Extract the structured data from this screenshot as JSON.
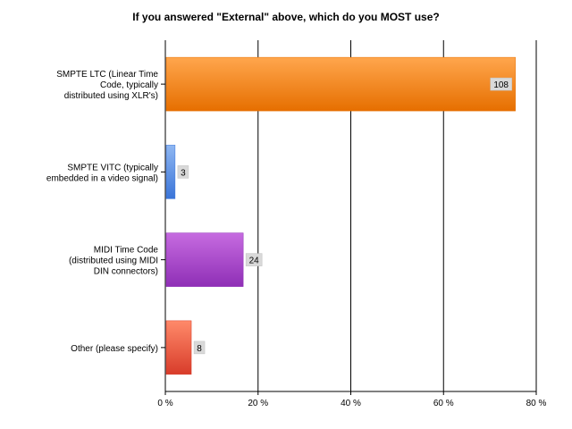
{
  "chart_data": {
    "type": "bar",
    "orientation": "horizontal",
    "title": "If you answered \"External\" above, which do you MOST use?",
    "categories": [
      [
        "SMPTE LTC (Linear Time",
        "Code, typically",
        "distributed using XLR's)"
      ],
      [
        "SMPTE VITC (typically",
        "embedded in a video signal)"
      ],
      [
        "MIDI Time Code",
        "(distributed using MIDI",
        "DIN connectors)"
      ],
      [
        "Other (please specify)"
      ]
    ],
    "values_percent": [
      75.5,
      2.1,
      16.8,
      5.6
    ],
    "data_labels": [
      "108",
      "3",
      "24",
      "8"
    ],
    "xlim": [
      0,
      80
    ],
    "x_ticks": [
      0,
      20,
      40,
      60,
      80
    ],
    "x_tick_labels": [
      "0 %",
      "20 %",
      "40 %",
      "60 %",
      "80 %"
    ],
    "grid": "vertical",
    "colors": [
      {
        "light": "#ffa64d",
        "dark": "#e66f00"
      },
      {
        "light": "#8fb7f2",
        "dark": "#3a74d8"
      },
      {
        "light": "#c66be0",
        "dark": "#8f2fb6"
      },
      {
        "light": "#ff8a6a",
        "dark": "#d83c2a"
      }
    ],
    "label_box_color": "#d9d9d9"
  }
}
